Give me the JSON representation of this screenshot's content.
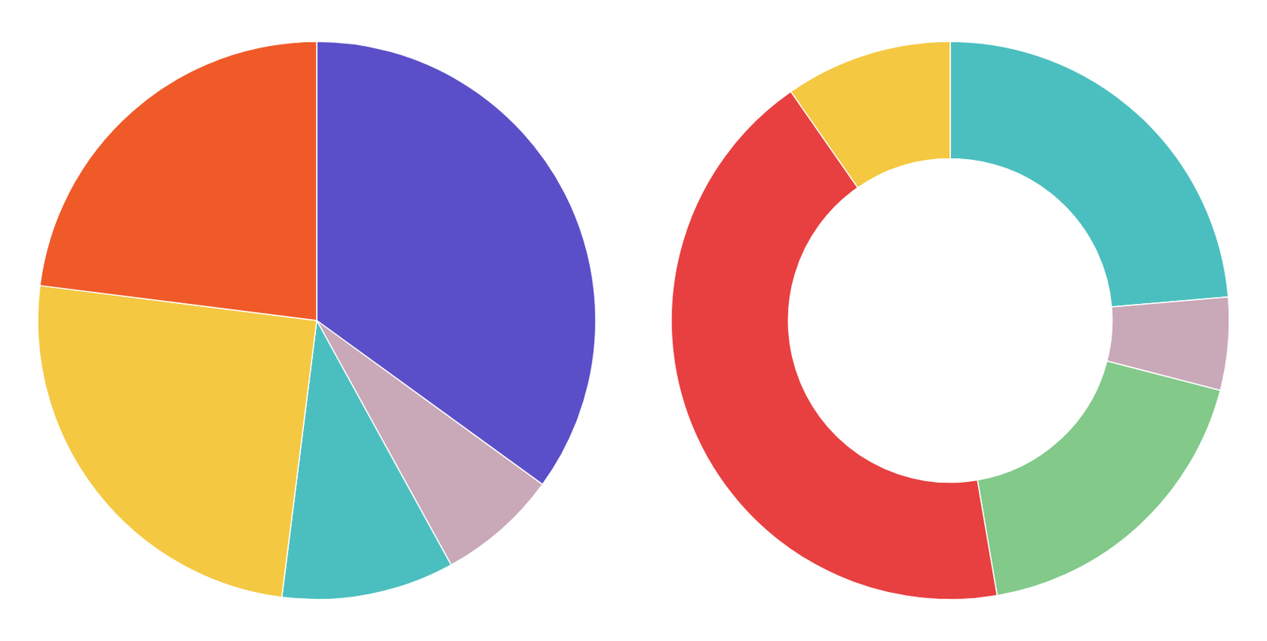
{
  "chart_data": [
    {
      "type": "pie",
      "values": [
        35,
        7,
        10,
        25,
        23
      ],
      "colors": [
        "#5b4fc9",
        "#c9a8b8",
        "#4bbfbf",
        "#f5c842",
        "#f05a28"
      ]
    },
    {
      "type": "donut",
      "values": [
        22,
        5,
        17,
        40,
        9
      ],
      "colors": [
        "#4bbfbf",
        "#c9a8b8",
        "#82c98a",
        "#e84040",
        "#f5c842"
      ]
    }
  ]
}
